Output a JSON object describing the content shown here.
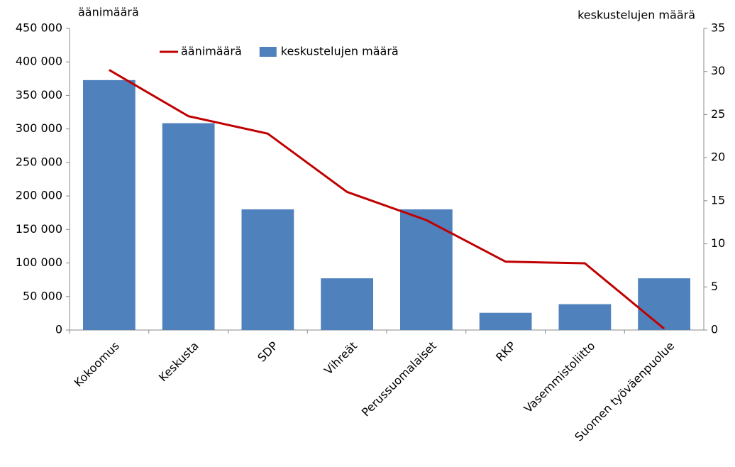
{
  "chart_data": {
    "type": "bar_line",
    "y_label": "äänimäärä",
    "y2_label": "keskustelujen määrä",
    "categories": [
      "Kokoomus",
      "Keskusta",
      "SDP",
      "Vihreät",
      "Perussuomalaiset",
      "RKP",
      "Vasemmistoliitto",
      "Suomen työväenpuolue"
    ],
    "series": [
      {
        "name": "äänimäärä",
        "type": "line",
        "color": "#c00000",
        "values": [
          388000,
          319000,
          293000,
          206000,
          164000,
          102000,
          99500,
          2000
        ]
      },
      {
        "name": "keskustelujen määrä",
        "type": "bar",
        "axis": "y2",
        "color": "#4f81bd",
        "values": [
          29,
          24,
          14,
          6,
          14,
          2,
          3,
          6
        ]
      }
    ],
    "ylim": [
      0,
      450000
    ],
    "yticks": [
      0,
      {
        "value": 50000,
        "label": "50 000"
      },
      {
        "value": 100000,
        "label": "100 000"
      },
      {
        "value": 150000,
        "label": "150 000"
      },
      {
        "value": 200000,
        "label": "200 000"
      },
      {
        "value": 250000,
        "label": "250 000"
      },
      {
        "value": 300000,
        "label": "300 000"
      },
      {
        "value": 350000,
        "label": "350 000"
      },
      {
        "value": 400000,
        "label": "400 000"
      },
      {
        "value": 450000,
        "label": "450 000"
      }
    ],
    "y2lim": [
      0,
      35
    ],
    "y2ticks": [
      0,
      5,
      10,
      15,
      20,
      25,
      30,
      35
    ],
    "legend": "top"
  }
}
